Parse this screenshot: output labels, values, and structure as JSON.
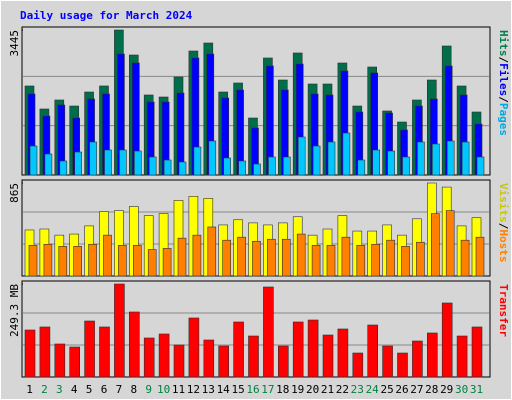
{
  "chart_data": [
    {
      "type": "bar",
      "title": "Daily usage for March 2024",
      "legend_separator": "/",
      "ylim": [
        0,
        3445
      ],
      "yticks": [
        3445
      ],
      "series": [
        {
          "name": "Hits",
          "color": "#006e4a",
          "legend_color": "#00804a",
          "values": [
            2115,
            1568,
            1782,
            1639,
            1972,
            2115,
            3445,
            2851,
            1901,
            1853,
            2328,
            2946,
            3136,
            1972,
            2186,
            1354,
            2780,
            2257,
            2899,
            2162,
            2162,
            2661,
            1639,
            2566,
            1521,
            1259,
            1782,
            2257,
            3065,
            2115,
            1497
          ]
        },
        {
          "name": "Files",
          "color": "#0000ff",
          "legend_color": "#0000ff",
          "values": [
            1925,
            1402,
            1663,
            1354,
            1806,
            1925,
            2875,
            2661,
            1734,
            1734,
            1948,
            2780,
            2875,
            1830,
            2020,
            1117,
            2590,
            2020,
            2637,
            1925,
            1901,
            2471,
            1497,
            2424,
            1473,
            1069,
            1639,
            1806,
            2590,
            1901,
            1212
          ]
        },
        {
          "name": "Pages",
          "color": "#00c8ff",
          "legend_color": "#00a8e0",
          "values": [
            689,
            499,
            333,
            546,
            784,
            594,
            594,
            570,
            428,
            356,
            309,
            665,
            808,
            404,
            333,
            261,
            428,
            428,
            903,
            689,
            784,
            998,
            356,
            594,
            570,
            428,
            784,
            737,
            808,
            784,
            428
          ]
        }
      ]
    },
    {
      "type": "bar",
      "ylim": [
        0,
        865
      ],
      "yticks": [
        865
      ],
      "series": [
        {
          "name": "Visits",
          "color": "#ffff00",
          "legend_color": "#c8c800",
          "values": [
            428,
            437,
            380,
            390,
            466,
            599,
            608,
            646,
            561,
            580,
            703,
            741,
            722,
            475,
            523,
            494,
            475,
            494,
            551,
            380,
            437,
            561,
            418,
            418,
            475,
            380,
            532,
            865,
            827,
            466,
            542
          ]
        },
        {
          "name": "Hosts",
          "color": "#ff8000",
          "legend_color": "#ff8000",
          "values": [
            285,
            295,
            276,
            276,
            295,
            380,
            285,
            285,
            247,
            257,
            352,
            380,
            456,
            333,
            361,
            323,
            342,
            342,
            390,
            285,
            285,
            361,
            285,
            295,
            333,
            276,
            314,
            580,
            608,
            333,
            361
          ]
        }
      ]
    },
    {
      "type": "bar",
      "ylim": [
        0,
        249.3
      ],
      "yticks": [
        {
          "value": 249.3,
          "label": "249.3 MB"
        }
      ],
      "categories": [
        "1",
        "2",
        "3",
        "4",
        "5",
        "6",
        "7",
        "8",
        "9",
        "10",
        "11",
        "12",
        "13",
        "14",
        "15",
        "16",
        "17",
        "18",
        "19",
        "20",
        "21",
        "22",
        "23",
        "24",
        "25",
        "26",
        "27",
        "28",
        "29",
        "30",
        "31"
      ],
      "category_colors": [
        "#000000",
        "#008040",
        "#008040",
        "#000000",
        "#000000",
        "#000000",
        "#000000",
        "#000000",
        "#008040",
        "#008040",
        "#000000",
        "#000000",
        "#000000",
        "#000000",
        "#000000",
        "#008040",
        "#008040",
        "#000000",
        "#000000",
        "#000000",
        "#000000",
        "#000000",
        "#008040",
        "#008040",
        "#000000",
        "#000000",
        "#000000",
        "#000000",
        "#000000",
        "#008040",
        "#008040"
      ],
      "series": [
        {
          "name": "Transfer",
          "color": "#ff0000",
          "legend_color": "#ff0000",
          "values": [
            126.0,
            134.1,
            88.5,
            80.4,
            150.1,
            134.1,
            249.3,
            174.3,
            104.6,
            115.3,
            85.8,
            158.2,
            99.2,
            83.1,
            147.5,
            109.9,
            241.3,
            83.1,
            147.5,
            152.8,
            112.6,
            128.7,
            64.3,
            139.4,
            83.1,
            64.3,
            96.5,
            118.0,
            198.4,
            109.9,
            134.1
          ]
        }
      ]
    }
  ]
}
